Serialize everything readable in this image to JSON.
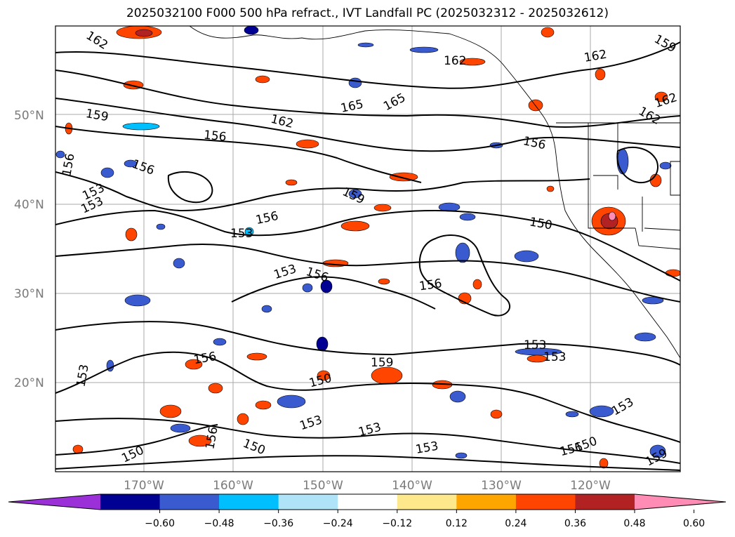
{
  "title": "2025032100 F000 500 hPa refract., IVT Landfall PC (2025032312 - 2025032612)",
  "map": {
    "lat_labels": [
      "50°N",
      "40°N",
      "30°N",
      "20°N"
    ],
    "lon_labels": [
      "170°W",
      "160°W",
      "150°W",
      "140°W",
      "130°W",
      "120°W"
    ],
    "grid": true,
    "contour_labels": [
      {
        "text": "162"
      },
      {
        "text": "159"
      },
      {
        "text": "156"
      },
      {
        "text": "156"
      },
      {
        "text": "165"
      },
      {
        "text": "165"
      },
      {
        "text": "162"
      },
      {
        "text": "162"
      },
      {
        "text": "162"
      },
      {
        "text": "162"
      },
      {
        "text": "159"
      },
      {
        "text": "156"
      },
      {
        "text": "153"
      },
      {
        "text": "153"
      },
      {
        "text": "159"
      },
      {
        "text": "156"
      },
      {
        "text": "156"
      },
      {
        "text": "153"
      },
      {
        "text": "153"
      },
      {
        "text": "156"
      },
      {
        "text": "156"
      },
      {
        "text": "150"
      },
      {
        "text": "153"
      },
      {
        "text": "153"
      },
      {
        "text": "156"
      },
      {
        "text": "159"
      },
      {
        "text": "150"
      },
      {
        "text": "153"
      },
      {
        "text": "153"
      },
      {
        "text": "153"
      },
      {
        "text": "150"
      },
      {
        "text": "150"
      },
      {
        "text": "153"
      },
      {
        "text": "156"
      },
      {
        "text": "150"
      },
      {
        "text": "153"
      },
      {
        "text": "159"
      },
      {
        "text": "162"
      },
      {
        "text": "156"
      }
    ]
  },
  "colorbar": {
    "colors": [
      "#9b30d9",
      "#000093",
      "#3a5bd0",
      "#00bfff",
      "#aee3f8",
      "#ffffff",
      "#fde88c",
      "#ffa500",
      "#ff4500",
      "#b22222",
      "#ff8cb4"
    ],
    "ticks": [
      "−0.60",
      "−0.48",
      "−0.36",
      "−0.24",
      "−0.12",
      "0.12",
      "0.24",
      "0.36",
      "0.48",
      "0.60"
    ]
  }
}
